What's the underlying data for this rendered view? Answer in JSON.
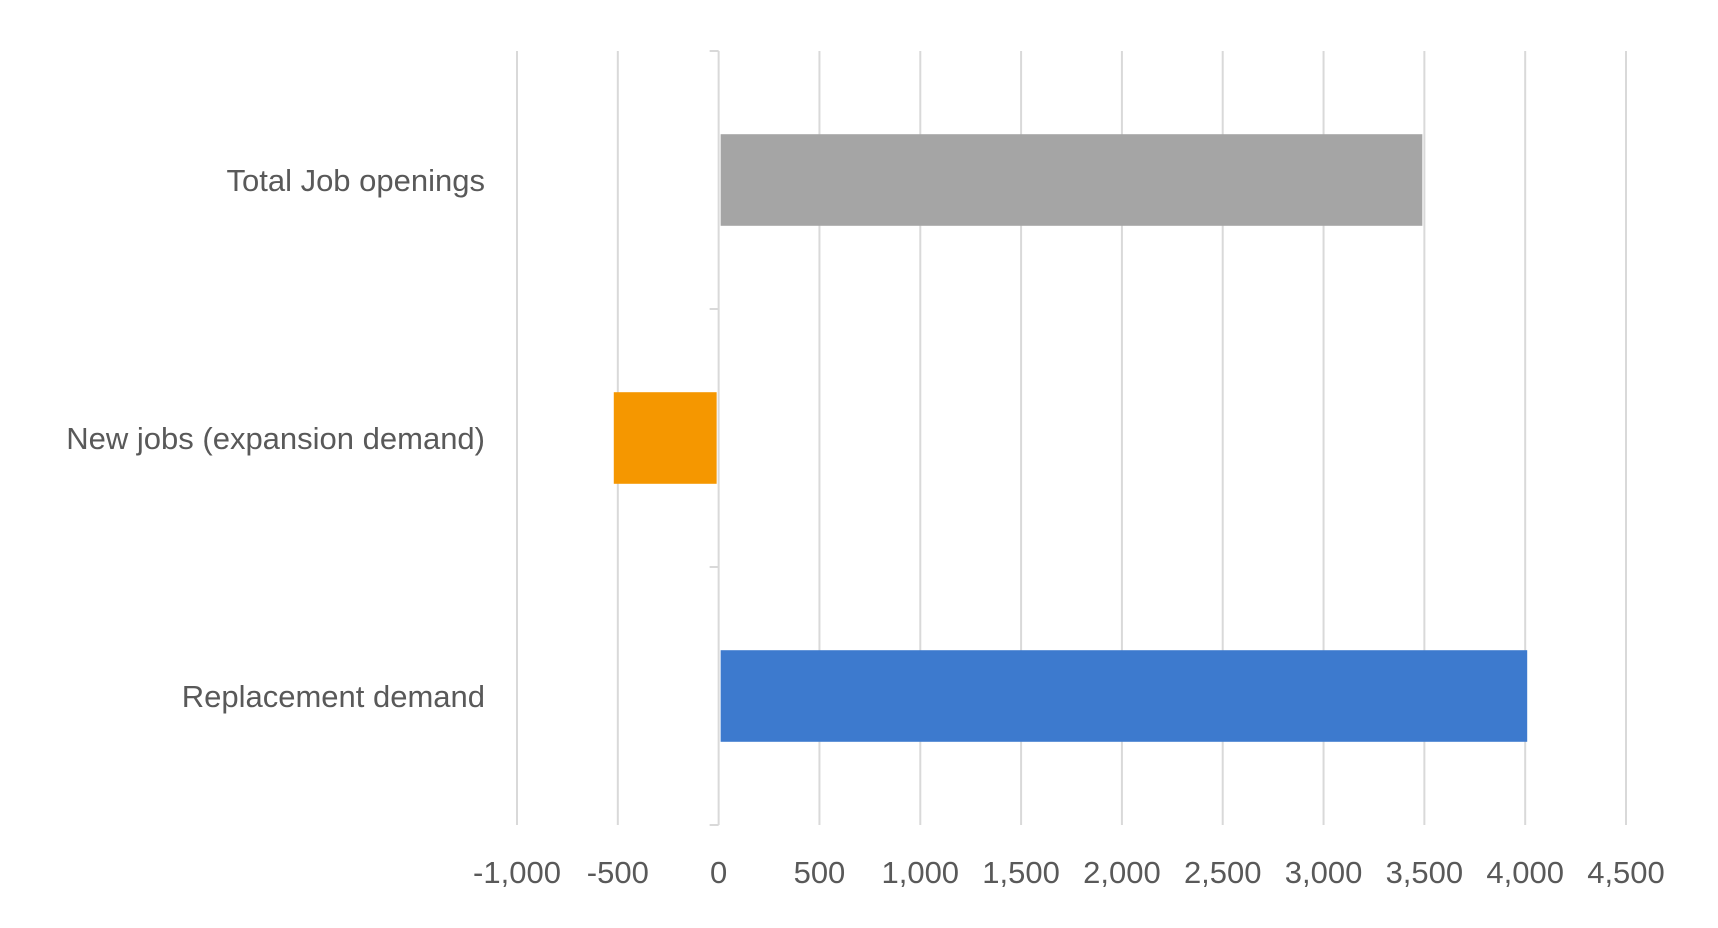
{
  "chart_data": {
    "type": "bar",
    "orientation": "horizontal",
    "title": "",
    "xlabel": "",
    "ylabel": "",
    "categories": [
      "Total Job openings",
      "New jobs (expansion demand)",
      "Replacement demand"
    ],
    "values": [
      3490,
      -520,
      4010
    ],
    "colors": [
      "#A5A5A5",
      "#F59700",
      "#3D7ACE"
    ],
    "xlim": [
      -1000,
      4500
    ],
    "xticks": [
      -1000,
      -500,
      0,
      500,
      1000,
      1500,
      2000,
      2500,
      3000,
      3500,
      4000,
      4500
    ],
    "xtick_labels": [
      "-1,000",
      "-500",
      "0",
      "500",
      "1,000",
      "1,500",
      "2,000",
      "2,500",
      "3,000",
      "3,500",
      "4,000",
      "4,500"
    ],
    "grid": true,
    "legend": "none"
  }
}
